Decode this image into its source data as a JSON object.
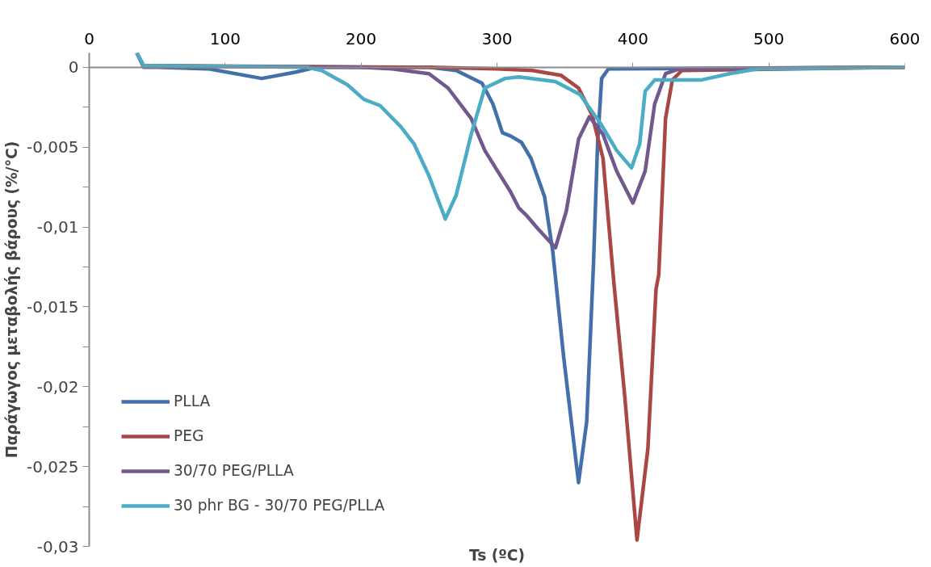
{
  "chart_data": {
    "type": "line",
    "xlabel": "Ts (ºC)",
    "ylabel": "Παράγωγος μεταβολής βάρους (%/°C)",
    "xlim": [
      0,
      600
    ],
    "ylim": [
      -0.03,
      0.0009
    ],
    "xticks": [
      0,
      100,
      200,
      300,
      400,
      500,
      600
    ],
    "yticks": [
      0,
      {
        "value": -0.0025,
        "label": null
      },
      {
        "value": -0.005,
        "label": "-0,005"
      },
      {
        "value": -0.0075,
        "label": null
      },
      {
        "value": -0.01,
        "label": "-0,01"
      },
      {
        "value": -0.0125,
        "label": null
      },
      {
        "value": -0.015,
        "label": "-0,015"
      },
      {
        "value": -0.0175,
        "label": null
      },
      {
        "value": -0.02,
        "label": "-0,02"
      },
      {
        "value": -0.0225,
        "label": null
      },
      {
        "value": -0.025,
        "label": "-0,025"
      },
      {
        "value": -0.0275,
        "label": null
      },
      {
        "value": -0.03,
        "label": "-0,03"
      }
    ],
    "grid": false,
    "legend": "bottom left",
    "marker": "none",
    "line_style": "solid",
    "series": [
      {
        "name": "PLLA",
        "color": "#4370aa",
        "x": [
          35,
          40,
          50,
          88,
          127,
          152,
          167,
          250,
          270,
          289,
          297,
          304,
          310,
          318,
          325,
          335,
          341,
          349,
          360,
          366,
          371,
          374,
          377,
          382,
          600
        ],
        "values": [
          0.0009,
          0,
          0,
          -0.0001,
          -0.0007,
          -0.0003,
          0,
          0,
          -0.0002,
          -0.001,
          -0.0023,
          -0.0041,
          -0.0043,
          -0.0047,
          -0.0057,
          -0.0081,
          -0.0115,
          -0.0181,
          -0.026,
          -0.0222,
          -0.0123,
          -0.0048,
          -0.0007,
          -0.0001,
          0
        ]
      },
      {
        "name": "PEG",
        "color": "#aa4643",
        "x": [
          40,
          250,
          300,
          326,
          347,
          360,
          370,
          378,
          386,
          394,
          403,
          411,
          417,
          419,
          424,
          429,
          436,
          600
        ],
        "values": [
          0.0001,
          0,
          -0.0001,
          -0.0002,
          -0.0005,
          -0.0013,
          -0.003,
          -0.0057,
          -0.0135,
          -0.0206,
          -0.0296,
          -0.0239,
          -0.0139,
          -0.013,
          -0.0032,
          -0.0008,
          -0.0002,
          0
        ]
      },
      {
        "name": "30/70 PEG/PLLA",
        "color": "#71588f",
        "x": [
          35,
          40,
          200,
          223,
          250,
          264,
          281,
          291,
          299,
          310,
          316,
          322,
          330,
          343,
          351,
          360,
          368,
          378,
          388,
          400,
          409,
          416,
          424,
          434,
          600
        ],
        "values": [
          0.0009,
          0.0001,
          0,
          -0.0001,
          -0.0004,
          -0.0013,
          -0.0032,
          -0.0052,
          -0.0063,
          -0.0078,
          -0.0088,
          -0.0093,
          -0.0101,
          -0.0113,
          -0.009,
          -0.0045,
          -0.0031,
          -0.0042,
          -0.0065,
          -0.0085,
          -0.0065,
          -0.0023,
          -0.0004,
          -0.0001,
          0
        ]
      },
      {
        "name": "30 phr BG - 30/70 PEG/PLLA",
        "color": "#4bacc6",
        "x": [
          35,
          40,
          160,
          171,
          190,
          202,
          214,
          229,
          239,
          250,
          262,
          270,
          281,
          291,
          306,
          316,
          343,
          361,
          376,
          388,
          399,
          405,
          409,
          416,
          450,
          471,
          492,
          600
        ],
        "values": [
          0.0009,
          0.0001,
          0,
          -0.0002,
          -0.0011,
          -0.002,
          -0.0024,
          -0.0037,
          -0.0048,
          -0.0068,
          -0.0095,
          -0.008,
          -0.0042,
          -0.0013,
          -0.0007,
          -0.0006,
          -0.0009,
          -0.0017,
          -0.0035,
          -0.0052,
          -0.0063,
          -0.0048,
          -0.0015,
          -0.0008,
          -0.0008,
          -0.0004,
          -0.0001,
          0
        ]
      }
    ]
  }
}
